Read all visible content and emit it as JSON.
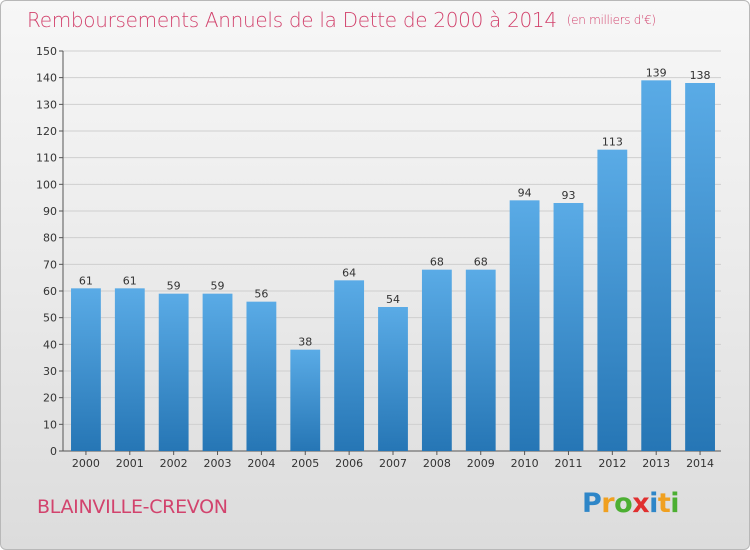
{
  "title": "Remboursements Annuels de la Dette de 2000 à 2014",
  "unit": "(en milliers d'€)",
  "city": "BLAINVILLE-CREVON",
  "logo": {
    "letters": [
      {
        "char": "P",
        "color": "#2e86c8"
      },
      {
        "char": "r",
        "color": "#f0a020"
      },
      {
        "char": "o",
        "color": "#4caf32"
      },
      {
        "char": "x",
        "color": "#e03030"
      },
      {
        "char": "i",
        "color": "#2e86c8"
      },
      {
        "char": "t",
        "color": "#f0a020"
      },
      {
        "char": "i",
        "color": "#4caf32"
      }
    ]
  },
  "colors": {
    "title": "#d2436d",
    "bar_top": "#5aabe6",
    "bar_bottom": "#2676b5"
  },
  "chart_data": {
    "type": "bar",
    "title": "Remboursements Annuels de la Dette de 2000 à 2014",
    "categories": [
      "2000",
      "2001",
      "2002",
      "2003",
      "2004",
      "2005",
      "2006",
      "2007",
      "2008",
      "2009",
      "2010",
      "2011",
      "2012",
      "2013",
      "2014"
    ],
    "values": [
      61,
      61,
      59,
      59,
      56,
      38,
      64,
      54,
      68,
      68,
      94,
      93,
      113,
      139,
      138
    ],
    "ylim": [
      0,
      150
    ],
    "yticks": [
      0,
      10,
      20,
      30,
      40,
      50,
      60,
      70,
      80,
      90,
      100,
      110,
      120,
      130,
      140,
      150
    ],
    "grid": true,
    "legend": "none"
  }
}
